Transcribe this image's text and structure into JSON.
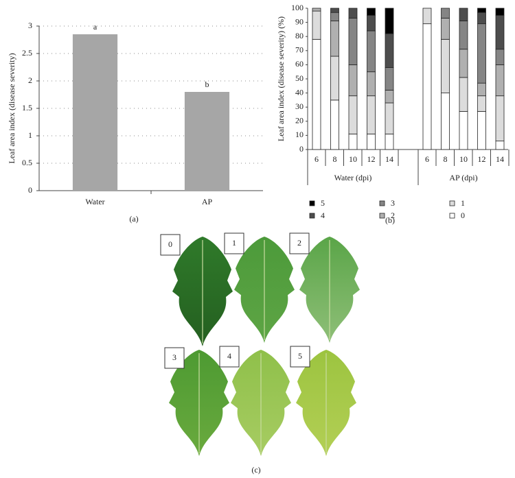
{
  "chart_data": [
    {
      "type": "bar",
      "ylabel": "Leaf area index (disease severity)",
      "categories": [
        "Water",
        "AP"
      ],
      "values": [
        2.85,
        1.8
      ],
      "annotations": [
        "a",
        "b"
      ],
      "color": "#a6a6a6",
      "ylim": [
        0,
        3
      ],
      "yticks": [
        0,
        0.5,
        1,
        1.5,
        2,
        2.5,
        3
      ],
      "grid": true,
      "caption": "(a)"
    },
    {
      "type": "stacked_bar",
      "ylabel": "Leaf area index (disease severity) (%)",
      "groups": [
        "Water (dpi)",
        "AP (dpi)"
      ],
      "categories": [
        "6",
        "8",
        "10",
        "12",
        "14",
        "6",
        "8",
        "10",
        "12",
        "14"
      ],
      "series": [
        {
          "name": "0",
          "color": "#ffffff",
          "values": [
            78,
            35,
            11,
            11,
            11,
            89,
            40,
            27,
            27,
            6
          ]
        },
        {
          "name": "1",
          "color": "#dcdcdc",
          "values": [
            20,
            31,
            27,
            27,
            22,
            11,
            38,
            24,
            11,
            32
          ]
        },
        {
          "name": "2",
          "color": "#b0b0b0",
          "values": [
            2,
            25,
            22,
            17,
            9,
            0,
            15,
            20,
            9,
            22
          ]
        },
        {
          "name": "3",
          "color": "#858585",
          "values": [
            0,
            6,
            33,
            29,
            16,
            0,
            7,
            20,
            42,
            11
          ]
        },
        {
          "name": "4",
          "color": "#4d4d4d",
          "values": [
            0,
            3,
            7,
            11,
            24,
            0,
            0,
            9,
            8,
            24
          ]
        },
        {
          "name": "5",
          "color": "#000000",
          "values": [
            0,
            0,
            0,
            5,
            18,
            0,
            0,
            0,
            3,
            5
          ]
        }
      ],
      "ylim": [
        0,
        100
      ],
      "yticks": [
        0,
        10,
        20,
        30,
        40,
        50,
        60,
        70,
        80,
        90,
        100
      ],
      "grid": false,
      "caption": "(b)"
    }
  ],
  "photos": {
    "labels": [
      "0",
      "1",
      "2",
      "3",
      "4",
      "5"
    ],
    "caption": "(c)"
  }
}
